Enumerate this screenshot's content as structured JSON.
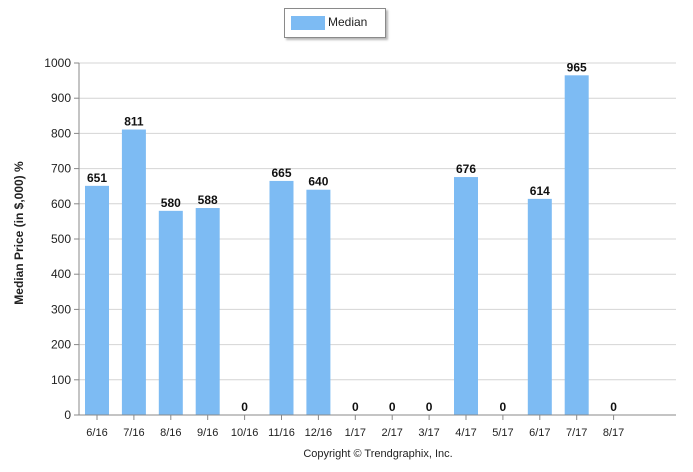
{
  "chart_data": {
    "type": "bar",
    "title": "",
    "xlabel": "",
    "ylabel": "Median Price (in $,000) %",
    "ylim": [
      0,
      1000
    ],
    "yticks": [
      0,
      100,
      200,
      300,
      400,
      500,
      600,
      700,
      800,
      900,
      1000
    ],
    "grid": true,
    "legend_position": "top-center",
    "categories": [
      "6/16",
      "7/16",
      "8/16",
      "9/16",
      "10/16",
      "11/16",
      "12/16",
      "1/17",
      "2/17",
      "3/17",
      "4/17",
      "5/17",
      "6/17",
      "7/17",
      "8/17"
    ],
    "series": [
      {
        "name": "Median",
        "color": "#7dbbf3",
        "values": [
          651,
          811,
          580,
          588,
          0,
          665,
          640,
          0,
          0,
          0,
          676,
          0,
          614,
          965,
          0
        ]
      }
    ]
  },
  "footer": "Copyright © Trendgraphix, Inc."
}
